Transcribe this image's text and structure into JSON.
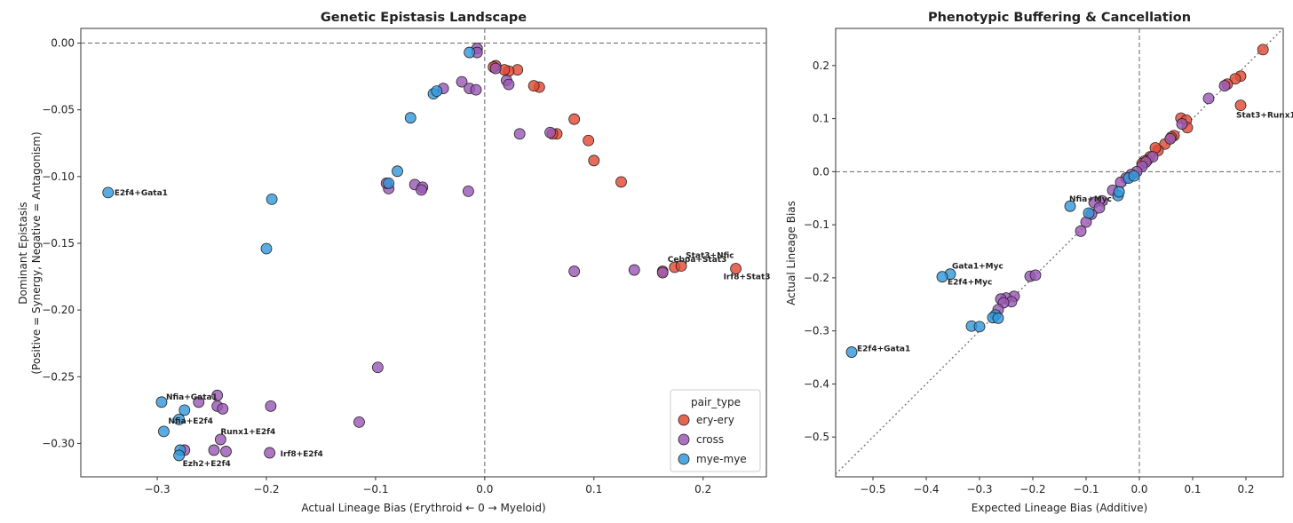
{
  "chart_data": [
    {
      "type": "scatter",
      "title": "Genetic Epistasis Landscape",
      "xlabel": "Actual Lineage Bias (Erythroid ← 0 → Myeloid)",
      "ylabel_lines": [
        "Dominant Epistasis",
        "(Positive = Synergy, Negative = Antagonism)"
      ],
      "xlim": [
        -0.37,
        0.258
      ],
      "ylim": [
        -0.325,
        0.011
      ],
      "xticks": [
        -0.3,
        -0.2,
        -0.1,
        0.0,
        0.1,
        0.2
      ],
      "xtick_labels": [
        "−0.3",
        "−0.2",
        "−0.1",
        "0.0",
        "0.1",
        "0.2"
      ],
      "yticks": [
        0.0,
        -0.05,
        -0.1,
        -0.15,
        -0.2,
        -0.25,
        -0.3
      ],
      "ytick_labels": [
        "0.00",
        "−0.05",
        "−0.10",
        "−0.15",
        "−0.20",
        "−0.25",
        "−0.30"
      ],
      "reference_lines": {
        "h": 0.0,
        "v": 0.0
      },
      "grid": false,
      "legend": {
        "title": "pair_type",
        "placement": "lower-right",
        "entries": [
          {
            "label": "ery-ery",
            "color": "#e24a33"
          },
          {
            "label": "cross",
            "color": "#9b59b6"
          },
          {
            "label": "mye-mye",
            "color": "#3498db"
          }
        ]
      },
      "series": [
        {
          "name": "ery-ery",
          "color": "#e24a33",
          "points": [
            [
              0.163,
              -0.171
            ],
            [
              0.174,
              -0.168
            ],
            [
              0.18,
              -0.167
            ],
            [
              0.23,
              -0.169
            ],
            [
              0.125,
              -0.104
            ],
            [
              0.1,
              -0.088
            ],
            [
              0.095,
              -0.073
            ],
            [
              0.082,
              -0.057
            ],
            [
              0.066,
              -0.068
            ],
            [
              0.062,
              -0.068
            ],
            [
              0.05,
              -0.033
            ],
            [
              0.045,
              -0.032
            ],
            [
              0.03,
              -0.02
            ],
            [
              0.022,
              -0.021
            ],
            [
              0.018,
              -0.02
            ],
            [
              0.01,
              -0.017
            ],
            [
              0.008,
              -0.018
            ]
          ]
        },
        {
          "name": "cross",
          "color": "#9b59b6",
          "points": [
            [
              -0.245,
              -0.264
            ],
            [
              -0.262,
              -0.269
            ],
            [
              -0.245,
              -0.272
            ],
            [
              -0.24,
              -0.274
            ],
            [
              -0.196,
              -0.272
            ],
            [
              -0.275,
              -0.305
            ],
            [
              -0.242,
              -0.297
            ],
            [
              -0.248,
              -0.305
            ],
            [
              -0.237,
              -0.306
            ],
            [
              -0.197,
              -0.307
            ],
            [
              -0.115,
              -0.284
            ],
            [
              -0.098,
              -0.243
            ],
            [
              -0.088,
              -0.109
            ],
            [
              -0.09,
              -0.105
            ],
            [
              -0.064,
              -0.106
            ],
            [
              -0.057,
              -0.108
            ],
            [
              -0.058,
              -0.11
            ],
            [
              -0.015,
              -0.111
            ],
            [
              -0.038,
              -0.034
            ],
            [
              -0.021,
              -0.029
            ],
            [
              -0.014,
              -0.034
            ],
            [
              -0.008,
              -0.035
            ],
            [
              -0.007,
              -0.004
            ],
            [
              -0.007,
              -0.007
            ],
            [
              0.01,
              -0.019
            ],
            [
              0.02,
              -0.028
            ],
            [
              0.022,
              -0.031
            ],
            [
              0.032,
              -0.068
            ],
            [
              0.06,
              -0.067
            ],
            [
              0.082,
              -0.171
            ],
            [
              0.137,
              -0.17
            ],
            [
              0.163,
              -0.172
            ]
          ]
        },
        {
          "name": "mye-mye",
          "color": "#3498db",
          "points": [
            [
              -0.345,
              -0.112
            ],
            [
              -0.296,
              -0.269
            ],
            [
              -0.294,
              -0.291
            ],
            [
              -0.28,
              -0.282
            ],
            [
              -0.275,
              -0.275
            ],
            [
              -0.279,
              -0.305
            ],
            [
              -0.28,
              -0.309
            ],
            [
              -0.2,
              -0.154
            ],
            [
              -0.195,
              -0.117
            ],
            [
              -0.088,
              -0.105
            ],
            [
              -0.08,
              -0.096
            ],
            [
              -0.068,
              -0.056
            ],
            [
              -0.047,
              -0.038
            ],
            [
              -0.044,
              -0.036
            ],
            [
              -0.014,
              -0.007
            ]
          ]
        }
      ],
      "annotations": [
        {
          "text": "E2f4+Gata1",
          "x": -0.345,
          "y": -0.112
        },
        {
          "text": "Stat3+Nfic",
          "x": 0.18,
          "y": -0.167
        },
        {
          "text": "Cebpa+Stat3",
          "x": 0.174,
          "y": -0.168
        },
        {
          "text": "Irf8+Stat3",
          "x": 0.23,
          "y": -0.169
        },
        {
          "text": "Nfia+Gata1",
          "x": -0.296,
          "y": -0.269
        },
        {
          "text": "Nfia+E2f4",
          "x": -0.294,
          "y": -0.291
        },
        {
          "text": "Runx1+E2f4",
          "x": -0.242,
          "y": -0.297
        },
        {
          "text": "Irf8+E2f4",
          "x": -0.197,
          "y": -0.307
        },
        {
          "text": "Ezh2+E2f4",
          "x": -0.28,
          "y": -0.309
        }
      ]
    },
    {
      "type": "scatter",
      "title": "Phenotypic Buffering & Cancellation",
      "xlabel": "Expected Lineage Bias (Additive)",
      "ylabel": "Actual Lineage Bias",
      "xlim": [
        -0.57,
        0.27
      ],
      "ylim": [
        -0.575,
        0.27
      ],
      "xticks": [
        -0.5,
        -0.4,
        -0.3,
        -0.2,
        -0.1,
        0.0,
        0.1,
        0.2
      ],
      "xtick_labels": [
        "−0.5",
        "−0.4",
        "−0.3",
        "−0.2",
        "−0.1",
        "0.0",
        "0.1",
        "0.2"
      ],
      "yticks": [
        0.2,
        0.1,
        0.0,
        -0.1,
        -0.2,
        -0.3,
        -0.4,
        -0.5
      ],
      "ytick_labels": [
        "0.2",
        "0.1",
        "0.0",
        "−0.1",
        "−0.2",
        "−0.3",
        "−0.4",
        "−0.5"
      ],
      "reference_lines": {
        "h": 0.0,
        "v": 0.0,
        "diagonal": true
      },
      "grid": false,
      "series": [
        {
          "name": "ery-ery",
          "color": "#e24a33",
          "points": [
            [
              0.232,
              0.23
            ],
            [
              0.19,
              0.18
            ],
            [
              0.18,
              0.175
            ],
            [
              0.165,
              0.165
            ],
            [
              0.19,
              0.125
            ],
            [
              0.078,
              0.101
            ],
            [
              0.088,
              0.097
            ],
            [
              0.09,
              0.083
            ],
            [
              0.065,
              0.068
            ],
            [
              0.06,
              0.065
            ],
            [
              0.048,
              0.052
            ],
            [
              0.035,
              0.04
            ],
            [
              0.03,
              0.045
            ],
            [
              0.02,
              0.028
            ],
            [
              0.015,
              0.022
            ],
            [
              0.01,
              0.02
            ],
            [
              0.005,
              0.015
            ]
          ]
        },
        {
          "name": "cross",
          "color": "#9b59b6",
          "points": [
            [
              0.13,
              0.138
            ],
            [
              0.16,
              0.162
            ],
            [
              0.08,
              0.09
            ],
            [
              0.058,
              0.062
            ],
            [
              0.025,
              0.028
            ],
            [
              0.012,
              0.018
            ],
            [
              0.005,
              0.01
            ],
            [
              -0.005,
              0.0
            ],
            [
              -0.015,
              -0.005
            ],
            [
              -0.025,
              -0.012
            ],
            [
              -0.035,
              -0.02
            ],
            [
              -0.05,
              -0.035
            ],
            [
              -0.07,
              -0.055
            ],
            [
              -0.085,
              -0.058
            ],
            [
              -0.09,
              -0.08
            ],
            [
              -0.1,
              -0.095
            ],
            [
              -0.11,
              -0.112
            ],
            [
              -0.075,
              -0.068
            ],
            [
              -0.205,
              -0.197
            ],
            [
              -0.195,
              -0.195
            ],
            [
              -0.235,
              -0.235
            ],
            [
              -0.25,
              -0.238
            ],
            [
              -0.26,
              -0.24
            ],
            [
              -0.24,
              -0.245
            ],
            [
              -0.255,
              -0.247
            ],
            [
              -0.265,
              -0.26
            ]
          ]
        },
        {
          "name": "mye-mye",
          "color": "#3498db",
          "points": [
            [
              -0.54,
              -0.34
            ],
            [
              -0.355,
              -0.193
            ],
            [
              -0.37,
              -0.198
            ],
            [
              -0.13,
              -0.065
            ],
            [
              -0.095,
              -0.078
            ],
            [
              -0.315,
              -0.291
            ],
            [
              -0.3,
              -0.292
            ],
            [
              -0.27,
              -0.27
            ],
            [
              -0.275,
              -0.275
            ],
            [
              -0.265,
              -0.276
            ],
            [
              -0.04,
              -0.045
            ],
            [
              -0.038,
              -0.038
            ],
            [
              -0.02,
              -0.012
            ],
            [
              -0.01,
              -0.008
            ]
          ]
        }
      ],
      "annotations": [
        {
          "text": "Stat3+Runx1",
          "x": 0.19,
          "y": 0.125
        },
        {
          "text": "Nfia+Myc",
          "x": -0.13,
          "y": -0.065
        },
        {
          "text": "Gata1+Myc",
          "x": -0.355,
          "y": -0.193
        },
        {
          "text": "E2f4+Myc",
          "x": -0.37,
          "y": -0.198
        },
        {
          "text": "E2f4+Gata1",
          "x": -0.54,
          "y": -0.34
        }
      ]
    }
  ]
}
